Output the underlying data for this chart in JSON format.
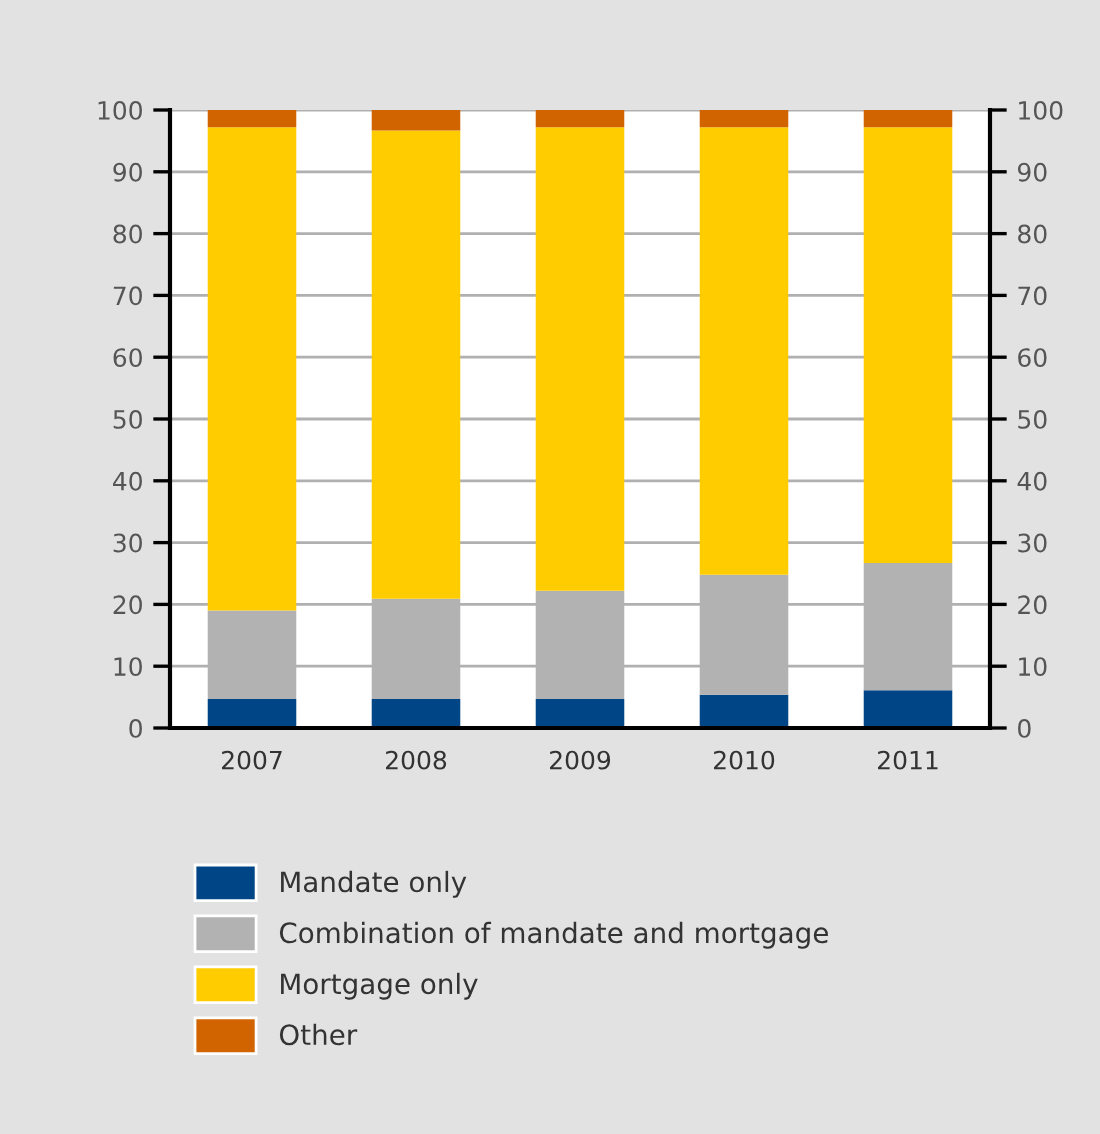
{
  "chart_data": {
    "type": "bar",
    "stacked": true,
    "categories": [
      "2007",
      "2008",
      "2009",
      "2010",
      "2011"
    ],
    "series": [
      {
        "name": "Mandate only",
        "color": "#004586",
        "values": [
          4.7,
          4.7,
          4.7,
          5.4,
          6.1
        ]
      },
      {
        "name": "Combination of mandate and mortgage",
        "color": "#b2b2b2",
        "values": [
          14.3,
          16.2,
          17.5,
          19.4,
          20.6
        ]
      },
      {
        "name": "Mortgage only",
        "color": "#ffcc00",
        "values": [
          78.2,
          75.8,
          75.0,
          72.4,
          70.5
        ]
      },
      {
        "name": "Other",
        "color": "#d26400",
        "values": [
          2.8,
          3.3,
          2.8,
          2.8,
          2.8
        ]
      }
    ],
    "ylim": [
      0,
      100
    ],
    "yticks": [
      0,
      10,
      20,
      30,
      40,
      50,
      60,
      70,
      80,
      90,
      100
    ],
    "y2lim": [
      0,
      100
    ],
    "y2ticks": [
      0,
      10,
      20,
      30,
      40,
      50,
      60,
      70,
      80,
      90,
      100
    ],
    "grid": "y",
    "legend": "bottom"
  }
}
